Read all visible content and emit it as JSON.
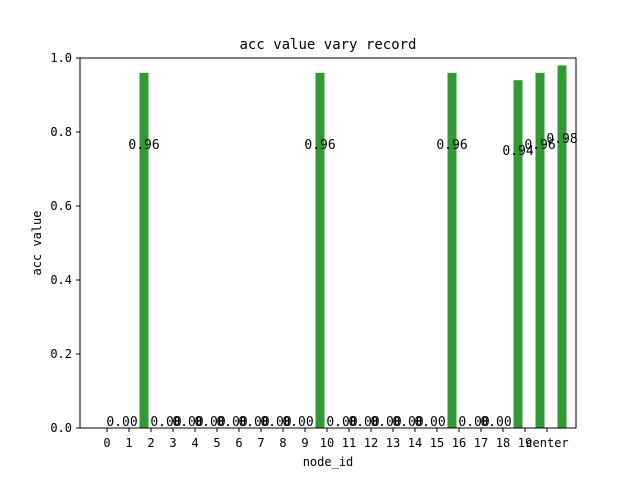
{
  "chart_data": {
    "type": "bar",
    "title": "acc value vary record",
    "xlabel": "node_id",
    "ylabel": "acc value",
    "categories": [
      "0",
      "1",
      "2",
      "3",
      "4",
      "5",
      "6",
      "7",
      "8",
      "9",
      "10",
      "11",
      "12",
      "13",
      "14",
      "15",
      "16",
      "17",
      "18",
      "19",
      "center"
    ],
    "values": [
      0.0,
      0.96,
      0.0,
      0.0,
      0.0,
      0.0,
      0.0,
      0.0,
      0.0,
      0.96,
      0.0,
      0.0,
      0.0,
      0.0,
      0.0,
      0.96,
      0.0,
      0.0,
      0.94,
      0.96,
      0.98
    ],
    "data_labels": [
      "0.00",
      "0.96",
      "0.00",
      "0.00",
      "0.00",
      "0.00",
      "0.00",
      "0.00",
      "0.00",
      "0.96",
      "0.00",
      "0.00",
      "0.00",
      "0.00",
      "0.00",
      "0.96",
      "0.00",
      "0.00",
      "0.94",
      "0.96",
      "0.98"
    ],
    "ylim": [
      0,
      1.0
    ],
    "yticks": [
      "0.0",
      "0.2",
      "0.4",
      "0.6",
      "0.8",
      "1.0"
    ],
    "bar_color": "#339933",
    "grid": false,
    "legend": false
  }
}
